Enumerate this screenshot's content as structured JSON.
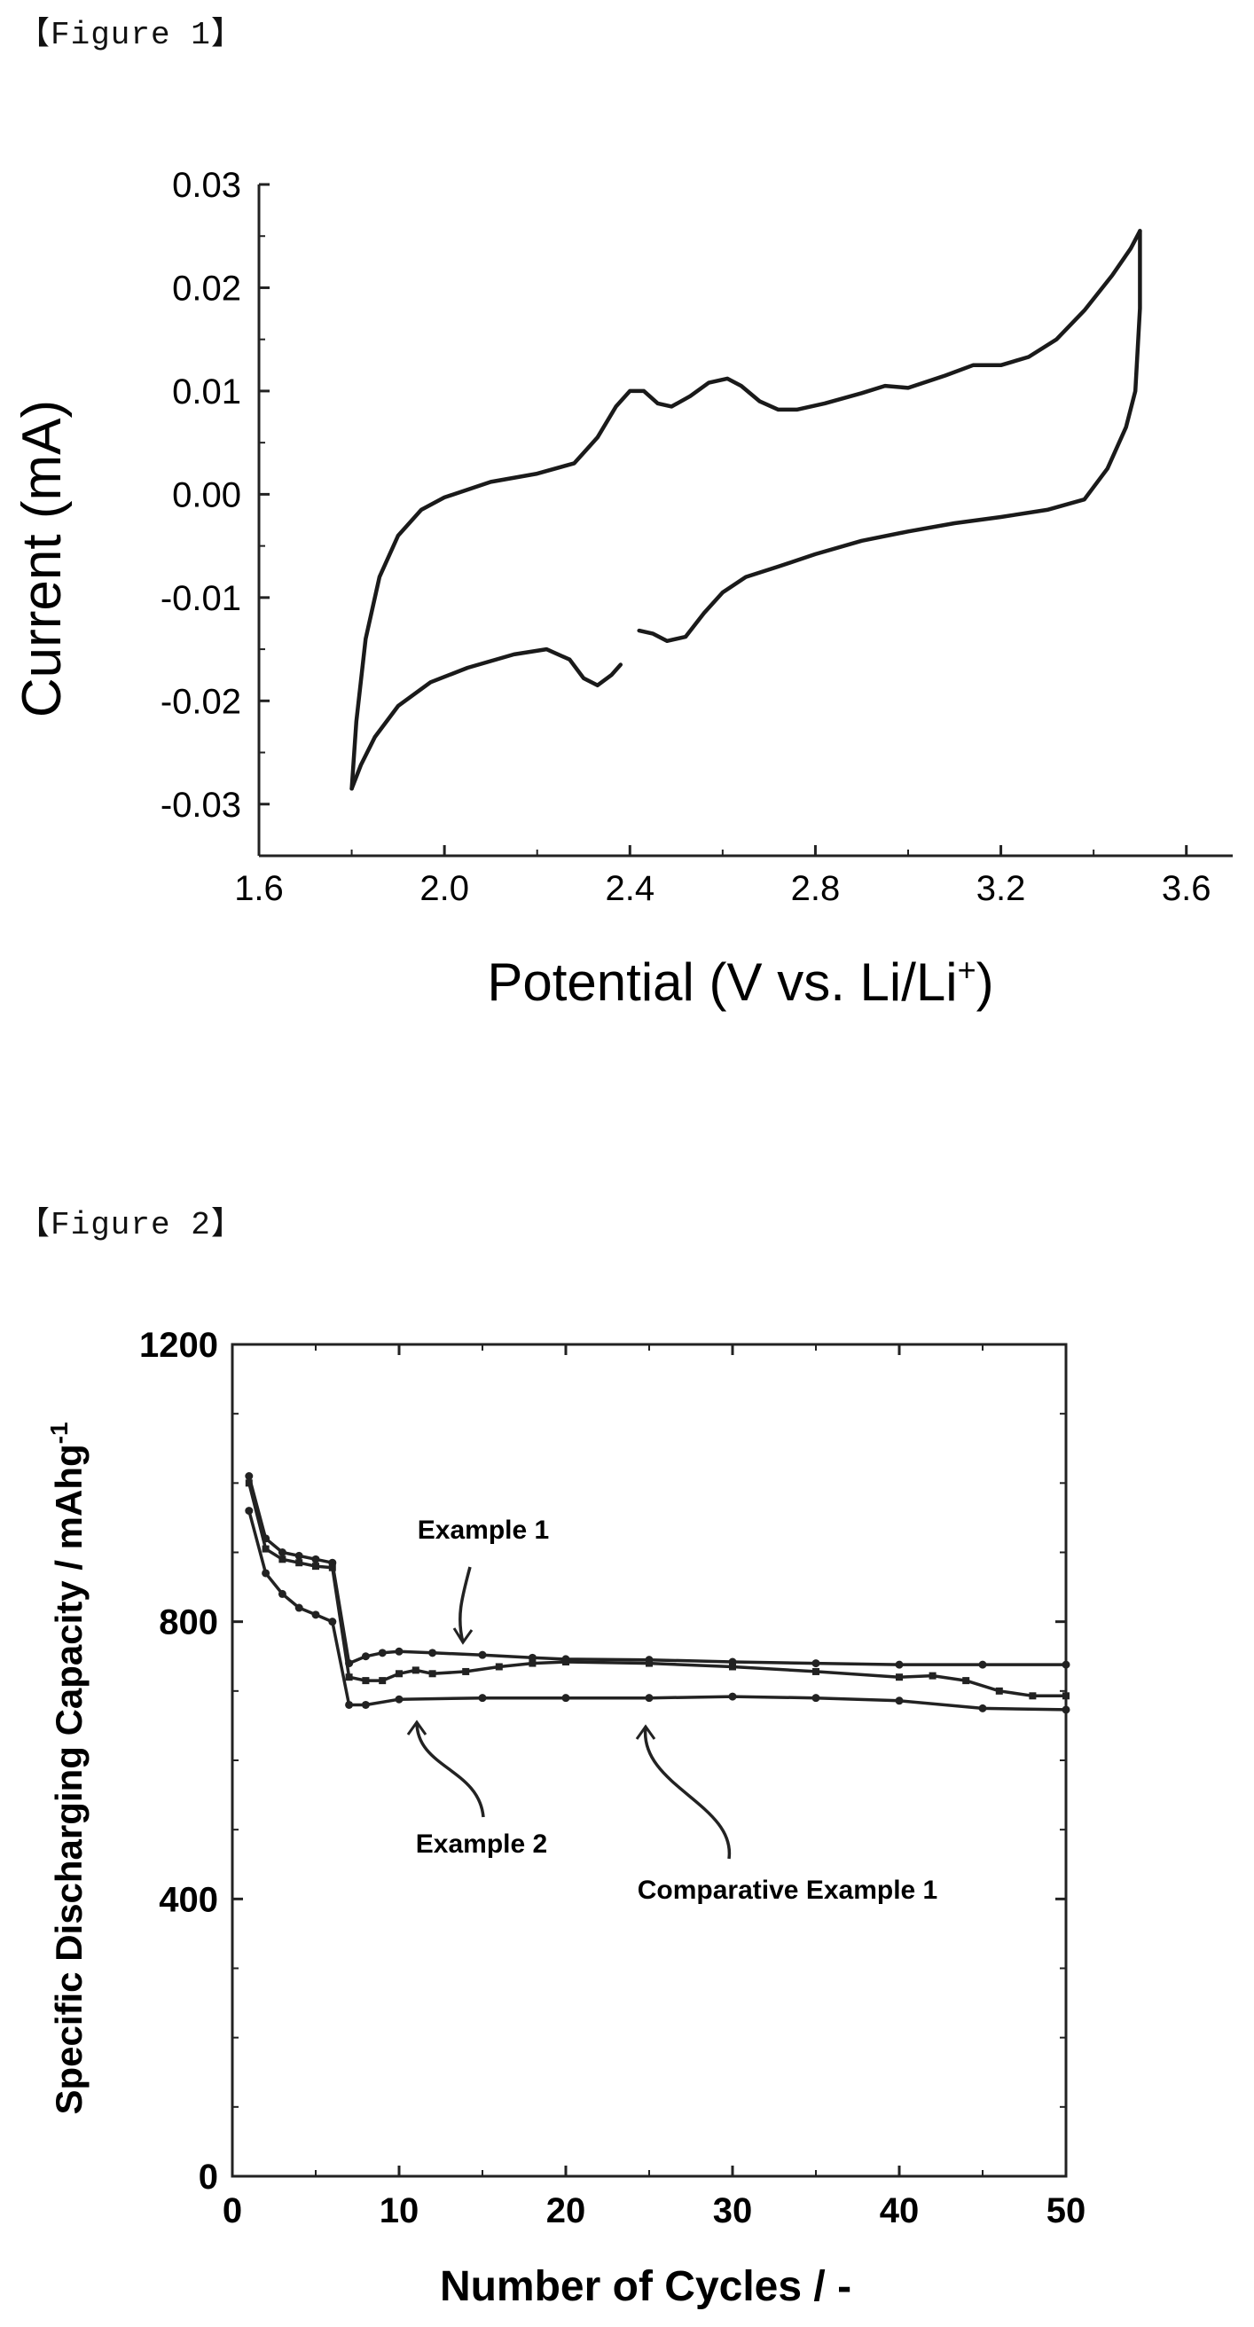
{
  "figures": [
    {
      "label": "【Figure 1】"
    },
    {
      "label": "【Figure 2】"
    }
  ],
  "chart_data": [
    {
      "type": "line",
      "title": "",
      "xlabel": "Potential (V vs. Li/Li",
      "xlabel_sup": "+",
      "xlabel_end": ")",
      "ylabel": "Current (mA)",
      "xlim": [
        1.6,
        3.7
      ],
      "ylim": [
        -0.035,
        0.03
      ],
      "xticks": [
        "1.6",
        "2.0",
        "2.4",
        "2.8",
        "3.2",
        "3.6"
      ],
      "xtick_values": [
        1.6,
        2.0,
        2.4,
        2.8,
        3.2,
        3.6
      ],
      "yticks": [
        "0.03",
        "0.02",
        "0.01",
        "0.00",
        "-0.01",
        "-0.02",
        "-0.03"
      ],
      "ytick_values": [
        0.03,
        0.02,
        0.01,
        0.0,
        -0.01,
        -0.02,
        -0.03
      ],
      "series": [
        {
          "x": [
            1.8,
            1.81,
            1.83,
            1.86,
            1.9,
            1.95,
            2.0,
            2.1,
            2.2,
            2.28,
            2.33,
            2.37,
            2.4,
            2.43,
            2.46,
            2.49,
            2.53,
            2.57,
            2.61,
            2.64,
            2.68,
            2.72,
            2.76,
            2.82,
            2.9,
            2.95,
            3.0,
            3.08,
            3.14,
            3.2,
            3.26,
            3.32,
            3.38,
            3.44,
            3.48,
            3.5
          ],
          "y": [
            -0.0285,
            -0.022,
            -0.014,
            -0.008,
            -0.004,
            -0.0015,
            -0.0003,
            0.0012,
            0.002,
            0.003,
            0.0055,
            0.0085,
            0.01,
            0.01,
            0.0088,
            0.0085,
            0.0095,
            0.0108,
            0.0112,
            0.0105,
            0.009,
            0.0082,
            0.0082,
            0.0088,
            0.0098,
            0.0105,
            0.0103,
            0.0115,
            0.0125,
            0.0125,
            0.0133,
            0.015,
            0.0178,
            0.0212,
            0.0238,
            0.0255
          ]
        },
        {
          "x": [
            3.5,
            3.5,
            3.49,
            3.47,
            3.43,
            3.38,
            3.3,
            3.2,
            3.1,
            3.0,
            2.9,
            2.8,
            2.72,
            2.65,
            2.6,
            2.56,
            2.52,
            2.48,
            2.45,
            2.42
          ],
          "y": [
            0.0255,
            0.018,
            0.01,
            0.0065,
            0.0025,
            -0.0005,
            -0.0015,
            -0.0022,
            -0.0028,
            -0.0036,
            -0.0045,
            -0.0058,
            -0.007,
            -0.008,
            -0.0095,
            -0.0115,
            -0.0138,
            -0.0142,
            -0.0135,
            -0.0132
          ]
        },
        {
          "x": [
            2.38,
            2.36,
            2.33,
            2.3,
            2.27,
            2.22,
            2.15,
            2.05,
            1.97,
            1.9,
            1.85,
            1.82,
            1.8
          ],
          "y": [
            -0.0165,
            -0.0175,
            -0.0185,
            -0.0178,
            -0.016,
            -0.015,
            -0.0155,
            -0.0168,
            -0.0182,
            -0.0205,
            -0.0235,
            -0.0262,
            -0.0285
          ]
        }
      ]
    },
    {
      "type": "line",
      "title": "",
      "xlabel": "Number of Cycles / -",
      "ylabel": "Specific Discharging Capacity / mAhg",
      "ylabel_sup": "-1",
      "xlim": [
        0,
        50
      ],
      "ylim": [
        0,
        1200
      ],
      "xticks": [
        "0",
        "10",
        "20",
        "30",
        "40",
        "50"
      ],
      "xtick_values": [
        0,
        10,
        20,
        30,
        40,
        50
      ],
      "yticks": [
        "0",
        "400",
        "800",
        "1200"
      ],
      "ytick_values": [
        0,
        400,
        800,
        1200
      ],
      "grid": false,
      "series": [
        {
          "name": "Example 1",
          "x": [
            1,
            2,
            3,
            4,
            5,
            6,
            7,
            8,
            9,
            10,
            12,
            15,
            18,
            20,
            25,
            30,
            35,
            40,
            45,
            50
          ],
          "y": [
            1010,
            920,
            900,
            895,
            890,
            885,
            740,
            750,
            755,
            757,
            755,
            752,
            748,
            746,
            745,
            742,
            740,
            738,
            738,
            738
          ]
        },
        {
          "name": "Example 2",
          "x": [
            1,
            2,
            3,
            4,
            5,
            6,
            7,
            8,
            9,
            10,
            11,
            12,
            14,
            16,
            18,
            20,
            25,
            30,
            35,
            40,
            42,
            44,
            46,
            48,
            50
          ],
          "y": [
            1000,
            905,
            890,
            885,
            880,
            878,
            720,
            715,
            715,
            725,
            730,
            725,
            728,
            735,
            740,
            742,
            740,
            735,
            728,
            720,
            722,
            715,
            700,
            693,
            693
          ]
        },
        {
          "name": "Comparative Example 1",
          "x": [
            1,
            2,
            3,
            4,
            5,
            6,
            7,
            8,
            10,
            15,
            20,
            25,
            30,
            35,
            40,
            45,
            50
          ],
          "y": [
            960,
            870,
            840,
            820,
            810,
            800,
            680,
            680,
            688,
            690,
            690,
            690,
            692,
            690,
            686,
            675,
            673
          ]
        }
      ]
    }
  ]
}
